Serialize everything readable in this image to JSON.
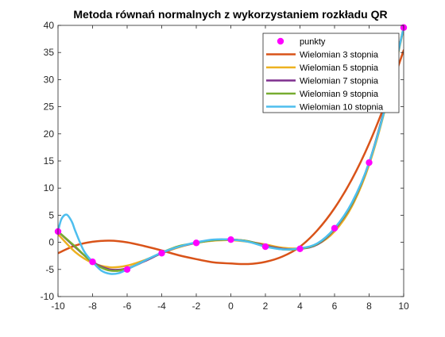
{
  "chart_data": {
    "type": "line",
    "title": "Metoda równań normalnych z wykorzystaniem rozkładu QR",
    "xlabel": "",
    "ylabel": "",
    "xlim": [
      -10,
      10
    ],
    "ylim": [
      -10,
      40
    ],
    "xticks": [
      -10,
      -8,
      -6,
      -4,
      -2,
      0,
      2,
      4,
      6,
      8,
      10
    ],
    "yticks": [
      -10,
      -5,
      0,
      5,
      10,
      15,
      20,
      25,
      30,
      35,
      40
    ],
    "grid": false,
    "legend_location": "top-right",
    "points": {
      "name": "punkty",
      "color": "#ff00ff",
      "x": [
        -10,
        -8,
        -6,
        -4,
        -2,
        0,
        2,
        4,
        6,
        8,
        10
      ],
      "y": [
        2.0,
        -3.6,
        -5.0,
        -2.0,
        -0.1,
        0.5,
        -0.8,
        -1.2,
        2.6,
        14.7,
        39.6
      ]
    },
    "series": [
      {
        "name": "Wielomian 3 stopnia",
        "color": "#d95319",
        "x": [
          -10,
          -9,
          -8,
          -7,
          -6,
          -5,
          -4,
          -3,
          -2,
          -1,
          0,
          1,
          2,
          3,
          4,
          5,
          6,
          7,
          8,
          9,
          10
        ],
        "y": [
          -2.0,
          -0.6,
          0.1,
          0.3,
          0.0,
          -0.7,
          -1.5,
          -2.4,
          -3.1,
          -3.7,
          -3.9,
          -4.0,
          -3.6,
          -2.6,
          -0.8,
          2.2,
          6.3,
          11.6,
          18.2,
          26.2,
          35.4
        ]
      },
      {
        "name": "Wielomian 5 stopnia",
        "color": "#edb120",
        "x": [
          -10,
          -9,
          -8,
          -7,
          -6,
          -5,
          -4,
          -3,
          -2,
          -1,
          0,
          1,
          2,
          3,
          4,
          5,
          6,
          7,
          8,
          9,
          10
        ],
        "y": [
          1.5,
          -1.8,
          -3.8,
          -4.6,
          -4.3,
          -3.3,
          -2.0,
          -0.9,
          -0.1,
          0.3,
          0.4,
          0.1,
          -0.4,
          -1.0,
          -1.1,
          -0.4,
          2.0,
          6.6,
          14.3,
          25.5,
          39.4
        ]
      },
      {
        "name": "Wielomian 7 stopnia",
        "color": "#7e2f8e",
        "x": [
          -10,
          -9,
          -8,
          -7,
          -6,
          -5,
          -4,
          -3,
          -2,
          -1,
          0,
          1,
          2,
          3,
          4,
          5,
          6,
          7,
          8,
          9,
          10
        ],
        "y": [
          2.0,
          -0.9,
          -3.6,
          -5.0,
          -4.8,
          -3.5,
          -2.0,
          -0.8,
          -0.1,
          0.4,
          0.5,
          0.2,
          -0.6,
          -1.2,
          -1.2,
          -0.4,
          2.4,
          7.0,
          14.7,
          26.0,
          39.6
        ]
      },
      {
        "name": "Wielomian 9 stopnia",
        "color": "#77ac30",
        "x": [
          -10,
          -9,
          -8,
          -7,
          -6,
          -5,
          -4,
          -3,
          -2,
          -1,
          0,
          1,
          2,
          3,
          4,
          5,
          6,
          7,
          8,
          9,
          10
        ],
        "y": [
          2.0,
          -0.8,
          -3.7,
          -5.2,
          -4.9,
          -3.4,
          -1.9,
          -0.7,
          -0.1,
          0.4,
          0.5,
          0.2,
          -0.7,
          -1.3,
          -1.2,
          -0.3,
          2.5,
          7.1,
          14.7,
          25.8,
          39.6
        ]
      },
      {
        "name": "Wielomian 10 stopnia",
        "color": "#4dbeee",
        "x": [
          -10,
          -9.8,
          -9.5,
          -9.2,
          -9,
          -8.5,
          -8,
          -7.5,
          -7,
          -6.5,
          -6,
          -5,
          -4,
          -3,
          -2,
          -1,
          0,
          1,
          2,
          3,
          4,
          5,
          6,
          7,
          8,
          9,
          10
        ],
        "y": [
          2.0,
          4.3,
          5.1,
          3.8,
          2.1,
          -1.6,
          -3.6,
          -5.2,
          -5.8,
          -5.7,
          -5.0,
          -3.4,
          -1.9,
          -0.8,
          0.0,
          0.5,
          0.5,
          0.1,
          -0.8,
          -1.3,
          -1.1,
          -0.2,
          2.6,
          7.3,
          14.7,
          25.7,
          39.6
        ]
      }
    ]
  }
}
